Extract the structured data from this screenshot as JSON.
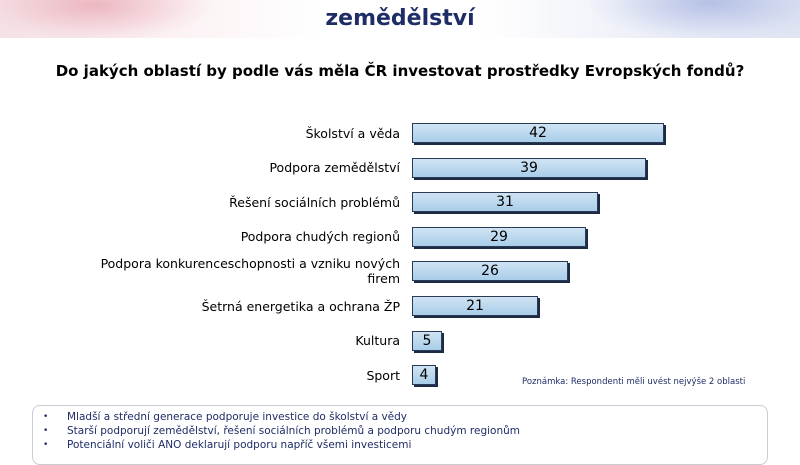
{
  "header": {
    "title": "zemědělství"
  },
  "question": "Do jakých oblastí by podle vás měla ČR investovat prostředky Evropských fondů?",
  "chart_data": {
    "type": "bar",
    "orientation": "horizontal",
    "categories": [
      "Školství a věda",
      "Podpora zemědělství",
      "Řešení sociálních problémů",
      "Podpora chudých regionů",
      "Podpora konkurenceschopnosti a vzniku nových firem",
      "Šetrná energetika a ochrana ŽP",
      "Kultura",
      "Sport"
    ],
    "category_lines": [
      [
        "Školství a věda"
      ],
      [
        "Podpora zemědělství"
      ],
      [
        "Řešení sociálních problémů"
      ],
      [
        "Podpora chudých regionů"
      ],
      [
        "Podpora konkurenceschopnosti a vzniku nových",
        "firem"
      ],
      [
        "Šetrná energetika a ochrana ŽP"
      ],
      [
        "Kultura"
      ],
      [
        "Sport"
      ]
    ],
    "values": [
      42,
      39,
      31,
      29,
      26,
      21,
      5,
      4
    ],
    "xlim": [
      0,
      100
    ],
    "grid": false,
    "bar_color": "#b8d6ee",
    "bar_border_color": "#2a3b55"
  },
  "note": "Poznámka: Respondenti měli uvést nejvýše 2 oblasti",
  "summary": [
    "Mladší a střední generace podporuje investice do školství a vědy",
    "Starší podporují zemědělství, řešení sociálních problémů a podporu chudým regionům",
    "Potenciální voliči ANO deklarují podporu napříč všemi investicemi"
  ],
  "colors": {
    "title": "#1f2d66",
    "accent_left": "#e6a0ae",
    "accent_right": "#9aaede"
  }
}
